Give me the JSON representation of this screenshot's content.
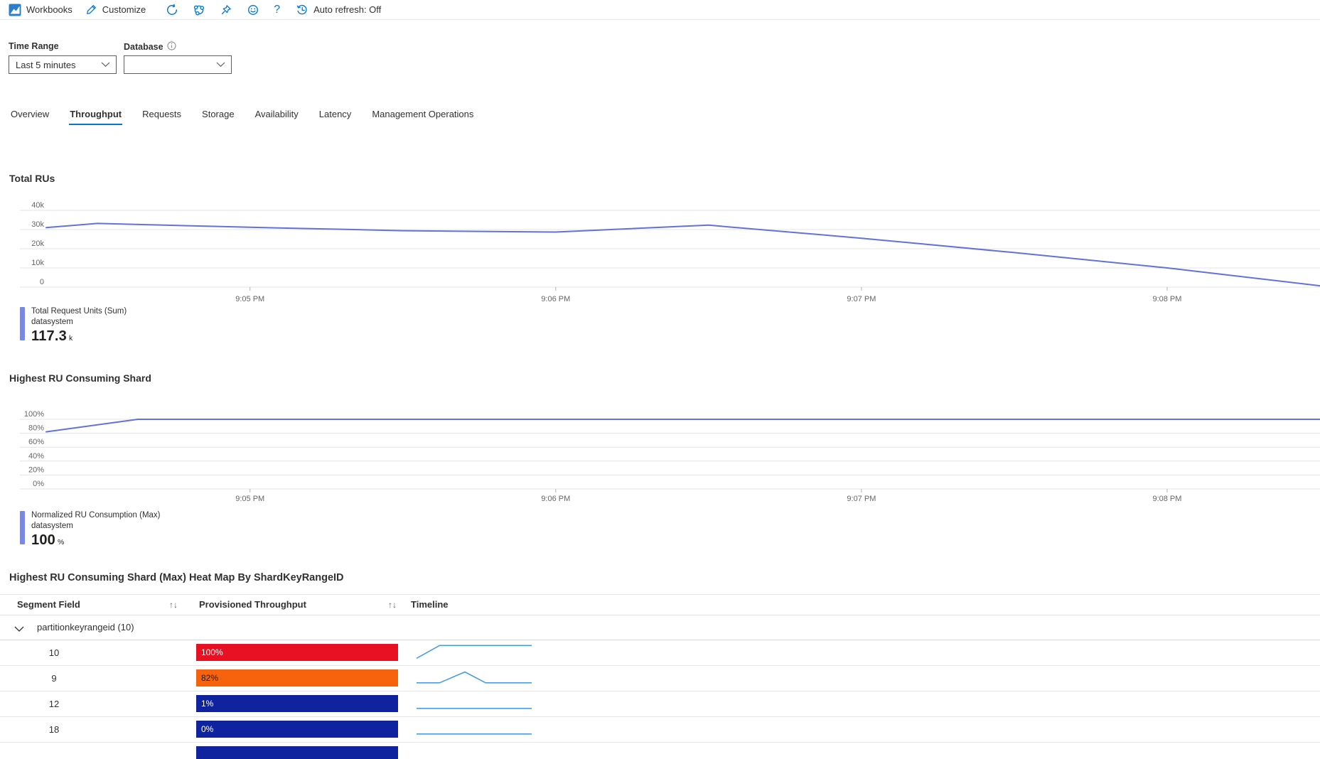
{
  "toolbar": {
    "app": "Workbooks",
    "customize": "Customize",
    "auto_refresh": "Auto refresh: Off",
    "icons": [
      "workbooks-logo",
      "pencil-icon",
      "refresh-icon",
      "nodes-icon",
      "pin-icon",
      "smiley-icon",
      "help-icon",
      "history-clock-icon"
    ]
  },
  "filters": {
    "time_range": {
      "label": "Time Range",
      "value": "Last 5 minutes"
    },
    "database": {
      "label": "Database",
      "value": "",
      "has_info_icon": true
    }
  },
  "tabs": [
    {
      "label": "Overview",
      "selected": false
    },
    {
      "label": "Throughput",
      "selected": true
    },
    {
      "label": "Requests",
      "selected": false
    },
    {
      "label": "Storage",
      "selected": false
    },
    {
      "label": "Availability",
      "selected": false
    },
    {
      "label": "Latency",
      "selected": false
    },
    {
      "label": "Management Operations",
      "selected": false
    }
  ],
  "colors": {
    "accent": "#0078d4",
    "chart_line": "#6372d8",
    "legend_bar": "#7b88e0",
    "grid": "#e4e4e4",
    "axis_text": "#666666",
    "spark_line": "#4a9ede",
    "heat_red": "#e81123",
    "heat_orange": "#f7630c",
    "heat_blue": "#10239e"
  },
  "chart_data": [
    {
      "type": "line",
      "title": "Total RUs",
      "xlabel": "",
      "ylabel": "",
      "ylim": [
        0,
        40000
      ],
      "yticks": [
        "40k",
        "30k",
        "20k",
        "10k",
        "0"
      ],
      "grid": true,
      "legend_position": "bottom-left",
      "x_window": {
        "start": "9:04:20 PM",
        "end": "9:08:30 PM",
        "seconds": 250
      },
      "xticks": [
        {
          "s": 40,
          "label": "9:05 PM"
        },
        {
          "s": 100,
          "label": "9:06 PM"
        },
        {
          "s": 160,
          "label": "9:07 PM"
        },
        {
          "s": 220,
          "label": "9:08 PM"
        }
      ],
      "series": [
        {
          "name": "Total Request Units (Sum)",
          "resource": "datasystem",
          "total_display": "117.3",
          "total_unit": "k",
          "points": [
            {
              "s": 0,
              "t": "9:04:20 PM",
              "v": 31000
            },
            {
              "s": 10,
              "t": "9:04:30 PM",
              "v": 33200
            },
            {
              "s": 40,
              "t": "9:05:00 PM",
              "v": 31200
            },
            {
              "s": 70,
              "t": "9:05:30 PM",
              "v": 29400
            },
            {
              "s": 100,
              "t": "9:06:00 PM",
              "v": 28700
            },
            {
              "s": 130,
              "t": "9:06:30 PM",
              "v": 32300
            },
            {
              "s": 160,
              "t": "9:07:00 PM",
              "v": 25500
            },
            {
              "s": 190,
              "t": "9:07:30 PM",
              "v": 18000
            },
            {
              "s": 220,
              "t": "9:08:00 PM",
              "v": 10000
            },
            {
              "s": 250,
              "t": "9:08:30 PM",
              "v": 700
            }
          ]
        }
      ]
    },
    {
      "type": "line",
      "title": "Highest RU Consuming Shard",
      "xlabel": "",
      "ylabel": "",
      "ylim": [
        0,
        100
      ],
      "yticks": [
        "100%",
        "80%",
        "60%",
        "40%",
        "20%",
        "0%"
      ],
      "grid": true,
      "legend_position": "bottom-left",
      "x_window": {
        "start": "9:04:20 PM",
        "end": "9:08:30 PM",
        "seconds": 250
      },
      "xticks": [
        {
          "s": 40,
          "label": "9:05 PM"
        },
        {
          "s": 100,
          "label": "9:06 PM"
        },
        {
          "s": 160,
          "label": "9:07 PM"
        },
        {
          "s": 220,
          "label": "9:08 PM"
        }
      ],
      "series": [
        {
          "name": "Normalized RU Consumption (Max)",
          "resource": "datasystem",
          "total_display": "100",
          "total_unit": "%",
          "points": [
            {
              "s": 0,
              "t": "9:04:20 PM",
              "v": 82
            },
            {
              "s": 18,
              "t": "9:04:38 PM",
              "v": 100
            },
            {
              "s": 40,
              "t": "9:05:00 PM",
              "v": 100
            },
            {
              "s": 100,
              "t": "9:06:00 PM",
              "v": 100
            },
            {
              "s": 160,
              "t": "9:07:00 PM",
              "v": 100
            },
            {
              "s": 220,
              "t": "9:08:00 PM",
              "v": 100
            },
            {
              "s": 250,
              "t": "9:08:30 PM",
              "v": 100
            }
          ]
        }
      ]
    },
    {
      "type": "table",
      "title": "Highest RU Consuming Shard (Max) Heat Map By ShardKeyRangeID",
      "columns": [
        "Segment Field",
        "Provisioned Throughput",
        "Timeline"
      ],
      "sortable_columns": [
        "Segment Field",
        "Provisioned Throughput"
      ],
      "group_label": "partitionkeyrangeid (10)",
      "group_expanded": true,
      "rows": [
        {
          "segment": "10",
          "throughput_pct": "100%",
          "heat_color": "#e81123",
          "text_color": "#ffffff",
          "spark": [
            [
              0,
              0.92
            ],
            [
              0.2,
              0.06
            ],
            [
              1,
              0.06
            ]
          ],
          "partial": false
        },
        {
          "segment": "9",
          "throughput_pct": "82%",
          "heat_color": "#f7630c",
          "text_color": "#1b1a19",
          "spark": [
            [
              0,
              0.85
            ],
            [
              0.2,
              0.85
            ],
            [
              0.42,
              0.12
            ],
            [
              0.6,
              0.85
            ],
            [
              1,
              0.85
            ]
          ],
          "partial": false
        },
        {
          "segment": "12",
          "throughput_pct": "1%",
          "heat_color": "#10239e",
          "text_color": "#ffffff",
          "spark": [
            [
              0,
              0.85
            ],
            [
              1,
              0.85
            ]
          ],
          "partial": false
        },
        {
          "segment": "18",
          "throughput_pct": "0%",
          "heat_color": "#10239e",
          "text_color": "#ffffff",
          "spark": [
            [
              0,
              0.85
            ],
            [
              1,
              0.85
            ]
          ],
          "partial": false
        },
        {
          "segment": "",
          "throughput_pct": "",
          "heat_color": "#10239e",
          "text_color": "#ffffff",
          "spark": null,
          "partial": true
        }
      ]
    }
  ]
}
